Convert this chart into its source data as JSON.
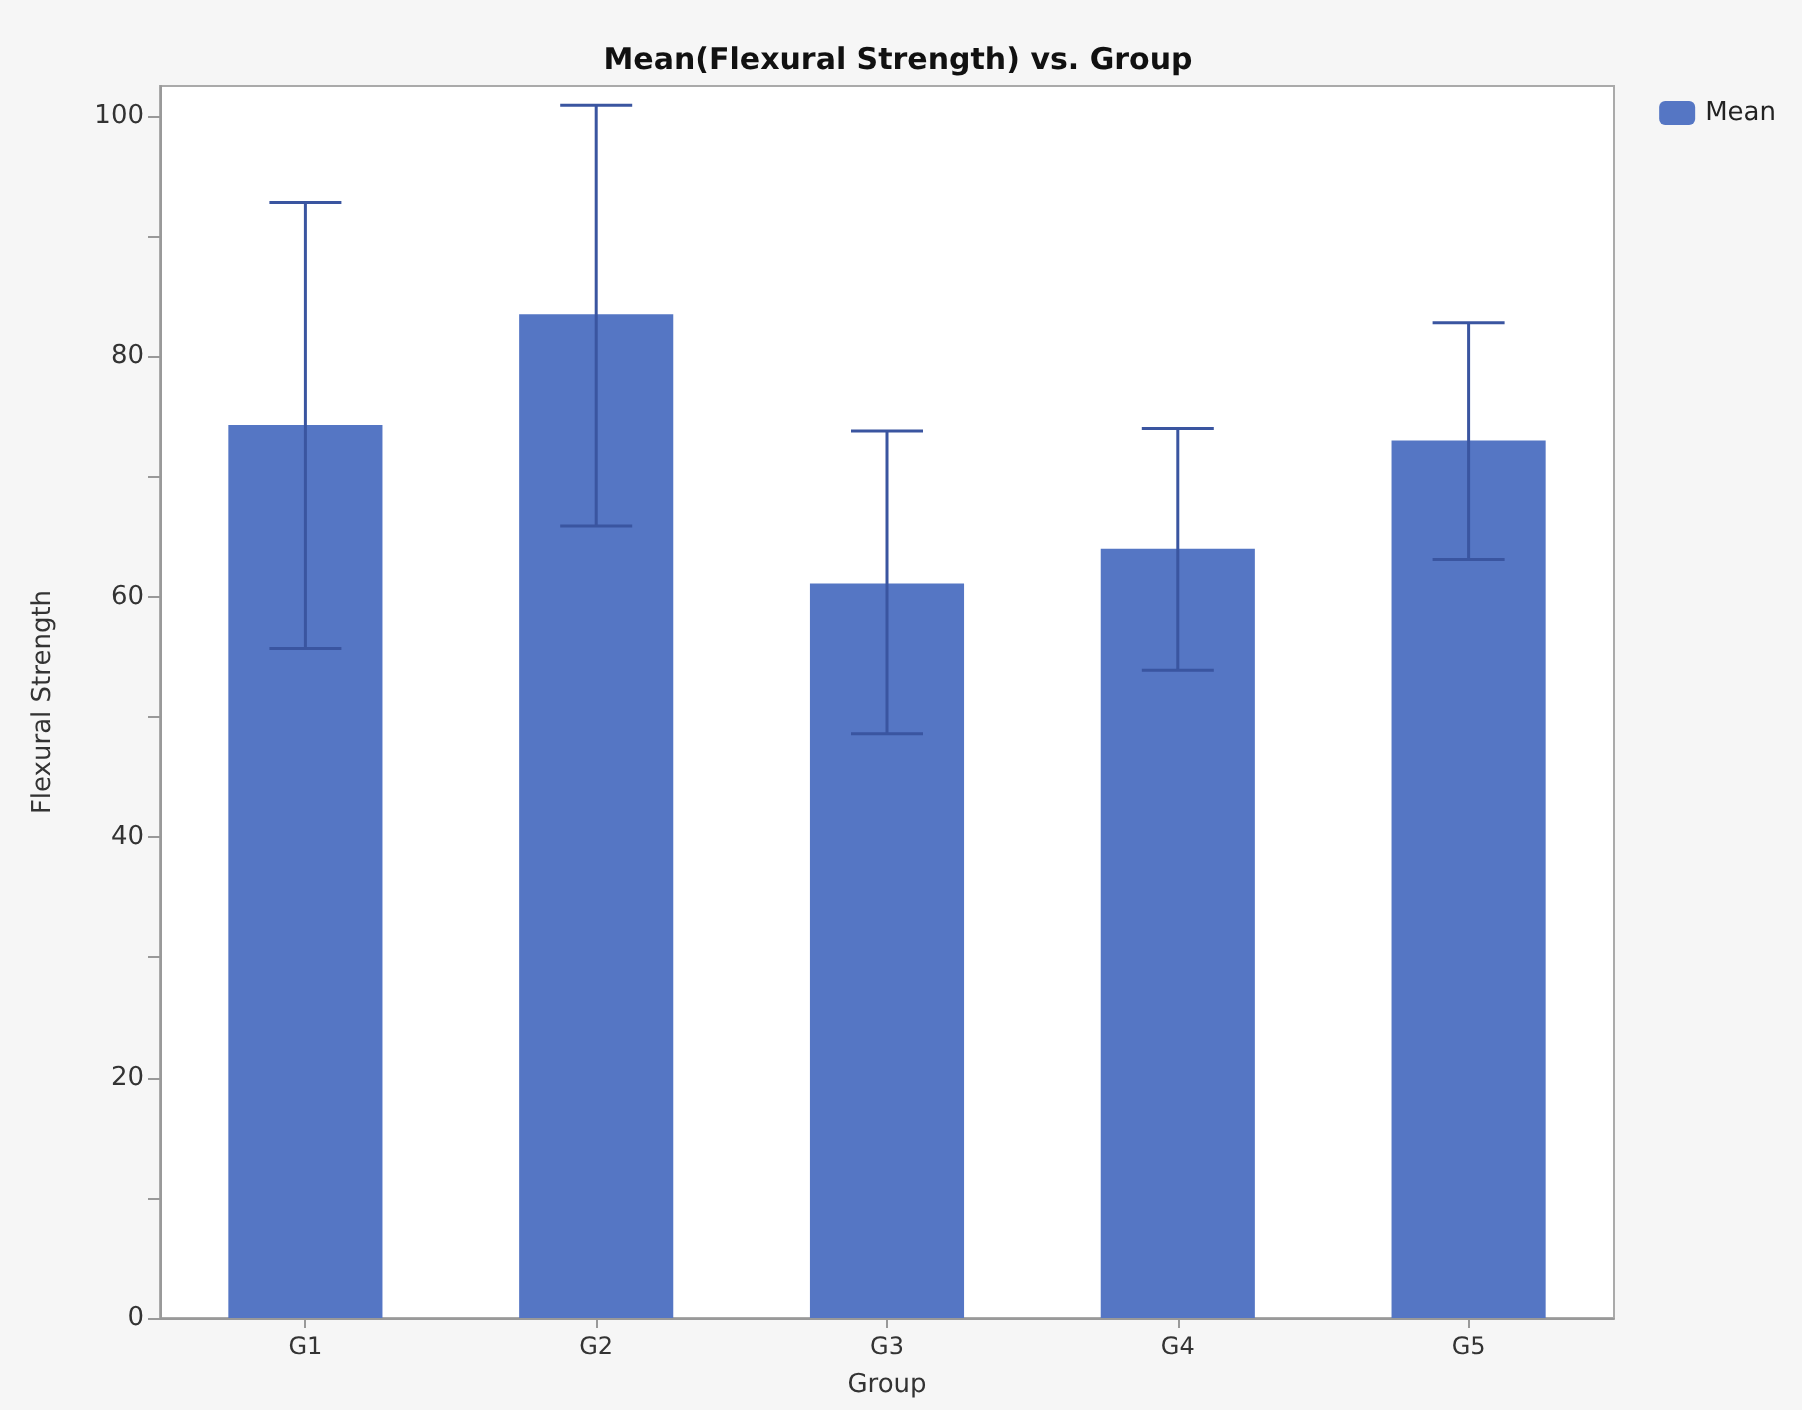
{
  "chart_data": {
    "type": "bar",
    "title": "Mean(Flexural Strength) vs. Group",
    "xlabel": "Group",
    "ylabel": "Flexural Strength",
    "categories": [
      "G1",
      "G2",
      "G3",
      "G4",
      "G5"
    ],
    "series": [
      {
        "name": "Mean",
        "color": "#5576c4",
        "values": [
          74.3,
          83.5,
          61.1,
          64.0,
          73.0
        ],
        "errors": [
          [
            55.7,
            92.8
          ],
          [
            65.9,
            100.9
          ],
          [
            48.6,
            73.8
          ],
          [
            53.9,
            74.0
          ],
          [
            63.1,
            82.8
          ]
        ]
      }
    ],
    "ylim": [
      0,
      102.5
    ],
    "yticks": [
      0,
      {
        "value": 10,
        "label": null
      },
      20,
      {
        "value": 30,
        "label": null
      },
      40,
      {
        "value": 50,
        "label": null
      },
      60,
      {
        "value": 70,
        "label": null
      },
      80,
      {
        "value": 90,
        "label": null
      },
      100
    ],
    "grid": false,
    "legend": "top right"
  }
}
